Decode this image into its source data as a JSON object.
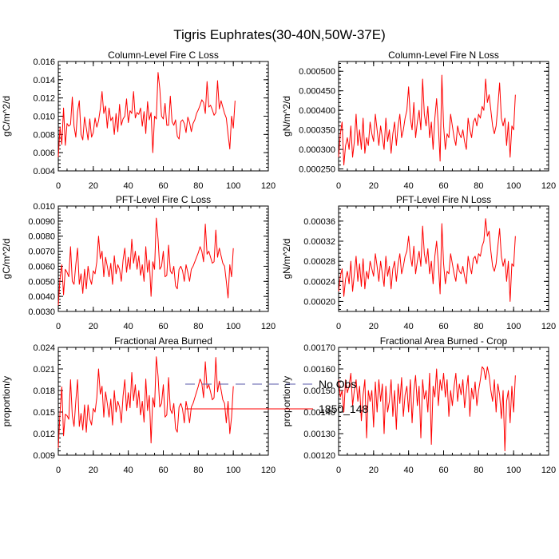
{
  "title": "Tigris Euphrates(30-40N,50W-37E)",
  "series_color": "#ff0000",
  "obs_color": "#5a5aa8",
  "legend": {
    "items": [
      {
        "label": "No Obs",
        "style": "dashed"
      },
      {
        "label": "1850_148",
        "style": "solid"
      }
    ]
  },
  "chart_data": [
    {
      "type": "line",
      "title": "Column-Level Fire C Loss",
      "ylabel": "gC/m^2/d",
      "xlim": [
        0,
        120
      ],
      "ylim": [
        0.004,
        0.016
      ],
      "xticks": [
        0,
        20,
        40,
        60,
        80,
        100,
        120
      ],
      "xtick_labels": [
        "0",
        "20",
        "40",
        "60",
        "80",
        "100",
        "120"
      ],
      "yticks": [
        0.004,
        0.006,
        0.008,
        0.01,
        0.012,
        0.014,
        0.016
      ],
      "ytick_labels": [
        "0.004",
        "0.006",
        "0.008",
        "0.010",
        "0.012",
        "0.014",
        "0.016"
      ],
      "series": [
        {
          "name": "1850_148",
          "values": [
            0.0055,
            0.0088,
            0.0069,
            0.0109,
            0.0068,
            0.0092,
            0.0089,
            0.0091,
            0.0121,
            0.0089,
            0.0077,
            0.0105,
            0.0117,
            0.008,
            0.0074,
            0.0099,
            0.0087,
            0.0074,
            0.0097,
            0.0077,
            0.0082,
            0.0098,
            0.0088,
            0.0095,
            0.0108,
            0.0127,
            0.0103,
            0.0111,
            0.0087,
            0.0109,
            0.0095,
            0.0099,
            0.008,
            0.0103,
            0.0083,
            0.0113,
            0.009,
            0.0097,
            0.01,
            0.0119,
            0.0093,
            0.0106,
            0.0103,
            0.0127,
            0.0098,
            0.0104,
            0.0102,
            0.0109,
            0.0089,
            0.0105,
            0.0081,
            0.0116,
            0.0096,
            0.0104,
            0.006,
            0.01,
            0.0097,
            0.0148,
            0.013,
            0.01,
            0.0097,
            0.0114,
            0.009,
            0.009,
            0.0122,
            0.0094,
            0.009,
            0.0096,
            0.0078,
            0.0075,
            0.0094,
            0.0096,
            0.0092,
            0.0082,
            0.0099,
            0.0093,
            0.0083,
            0.0092,
            0.0096,
            0.0103,
            0.0107,
            0.0112,
            0.0118,
            0.0115,
            0.0103,
            0.0138,
            0.011,
            0.0112,
            0.0107,
            0.0101,
            0.0104,
            0.0139,
            0.0108,
            0.0117,
            0.011,
            0.0103,
            0.0098,
            0.008,
            0.0064,
            0.01,
            0.0087,
            0.0117
          ]
        }
      ]
    },
    {
      "type": "line",
      "title": "Column-Level Fire N Loss",
      "ylabel": "gN/m^2/d",
      "xlim": [
        0,
        120
      ],
      "ylim": [
        0.000245,
        0.000525
      ],
      "xticks": [
        0,
        20,
        40,
        60,
        80,
        100,
        120
      ],
      "xtick_labels": [
        "0",
        "20",
        "40",
        "60",
        "80",
        "100",
        "120"
      ],
      "yticks": [
        0.00025,
        0.0003,
        0.00035,
        0.0004,
        0.00045,
        0.0005
      ],
      "ytick_labels": [
        "0.000250",
        "0.000300",
        "0.000350",
        "0.000400",
        "0.000450",
        "0.000500"
      ],
      "series": [
        {
          "name": "1850_148",
          "values": [
            0.00028,
            0.00034,
            0.00037,
            0.00026,
            0.00031,
            0.00033,
            0.0003,
            0.00036,
            0.00028,
            0.00032,
            0.00039,
            0.00031,
            0.00035,
            0.0003,
            0.00038,
            0.00029,
            0.00033,
            0.00031,
            0.00037,
            0.00034,
            0.00032,
            0.00039,
            0.00035,
            0.00031,
            0.00036,
            0.00033,
            0.0003,
            0.00038,
            0.00032,
            0.00035,
            0.00029,
            0.00034,
            0.00037,
            0.00031,
            0.00036,
            0.00039,
            0.00033,
            0.00035,
            0.00038,
            0.0004,
            0.00046,
            0.00038,
            0.00035,
            0.00042,
            0.00033,
            0.00037,
            0.0004,
            0.00035,
            0.00048,
            0.00039,
            0.00036,
            0.00041,
            0.00033,
            0.00037,
            0.0003,
            0.00038,
            0.00043,
            0.00036,
            0.00027,
            0.00049,
            0.00036,
            0.0003,
            0.00034,
            0.00033,
            0.00039,
            0.00036,
            0.00033,
            0.00031,
            0.00036,
            0.00034,
            0.00033,
            0.00035,
            0.00032,
            0.0003,
            0.00038,
            0.00035,
            0.00033,
            0.00037,
            0.00038,
            0.00036,
            0.00039,
            0.00038,
            0.00041,
            0.0004,
            0.00048,
            0.00042,
            0.00044,
            0.0004,
            0.00036,
            0.00034,
            0.00036,
            0.00041,
            0.00047,
            0.00038,
            0.00036,
            0.00038,
            0.00031,
            0.00037,
            0.00028,
            0.00036,
            0.00035,
            0.00044
          ]
        }
      ]
    },
    {
      "type": "line",
      "title": "PFT-Level Fire C Loss",
      "ylabel": "gC/m^2/d",
      "xlim": [
        0,
        120
      ],
      "ylim": [
        0.003,
        0.01
      ],
      "xticks": [
        0,
        20,
        40,
        60,
        80,
        100,
        120
      ],
      "xtick_labels": [
        "0",
        "20",
        "40",
        "60",
        "80",
        "100",
        "120"
      ],
      "yticks": [
        0.003,
        0.004,
        0.005,
        0.006,
        0.007,
        0.008,
        0.009,
        0.01
      ],
      "ytick_labels": [
        "0.0030",
        "0.0040",
        "0.0050",
        "0.0060",
        "0.0070",
        "0.0080",
        "0.0090",
        "0.010"
      ],
      "series": [
        {
          "name": "1850_148",
          "values": [
            0.0034,
            0.0052,
            0.0061,
            0.0041,
            0.0058,
            0.0056,
            0.0053,
            0.0073,
            0.005,
            0.0048,
            0.0061,
            0.0072,
            0.0048,
            0.0055,
            0.0042,
            0.0058,
            0.0045,
            0.006,
            0.0052,
            0.0048,
            0.0057,
            0.0055,
            0.0063,
            0.008,
            0.0065,
            0.007,
            0.0053,
            0.0066,
            0.006,
            0.0053,
            0.0062,
            0.0048,
            0.0067,
            0.0055,
            0.0061,
            0.0058,
            0.005,
            0.0064,
            0.0072,
            0.0056,
            0.0066,
            0.0058,
            0.0078,
            0.0062,
            0.007,
            0.0058,
            0.0067,
            0.0054,
            0.0061,
            0.005,
            0.0073,
            0.0056,
            0.0064,
            0.004,
            0.0063,
            0.0058,
            0.0092,
            0.0078,
            0.0058,
            0.006,
            0.007,
            0.0053,
            0.0054,
            0.0074,
            0.0057,
            0.0055,
            0.006,
            0.0047,
            0.0045,
            0.0058,
            0.006,
            0.0057,
            0.005,
            0.0061,
            0.0056,
            0.005,
            0.0058,
            0.006,
            0.0063,
            0.0066,
            0.0069,
            0.0073,
            0.007,
            0.0063,
            0.0088,
            0.0068,
            0.007,
            0.0066,
            0.0062,
            0.0063,
            0.0084,
            0.0066,
            0.0072,
            0.0067,
            0.0062,
            0.006,
            0.005,
            0.0039,
            0.0061,
            0.0053,
            0.0072
          ]
        }
      ]
    },
    {
      "type": "line",
      "title": "PFT-Level Fire N Loss",
      "ylabel": "gN/m^2/d",
      "xlim": [
        0,
        120
      ],
      "ylim": [
        0.00018,
        0.00039
      ],
      "xticks": [
        0,
        20,
        40,
        60,
        80,
        100,
        120
      ],
      "xtick_labels": [
        "0",
        "20",
        "40",
        "60",
        "80",
        "100",
        "120"
      ],
      "yticks": [
        0.0002,
        0.00024,
        0.00028,
        0.00032,
        0.00036
      ],
      "ytick_labels": [
        "0.00020",
        "0.00024",
        "0.00028",
        "0.00032",
        "0.00036"
      ],
      "series": [
        {
          "name": "1850_148",
          "values": [
            0.00022,
            0.00025,
            0.000265,
            0.00021,
            0.000245,
            0.00026,
            0.000235,
            0.00028,
            0.00022,
            0.000255,
            0.00029,
            0.00024,
            0.000275,
            0.00023,
            0.000285,
            0.000225,
            0.00026,
            0.000245,
            0.00028,
            0.000265,
            0.00025,
            0.000295,
            0.00027,
            0.00024,
            0.00028,
            0.000255,
            0.00023,
            0.00029,
            0.00025,
            0.00027,
            0.000225,
            0.000265,
            0.00028,
            0.00024,
            0.000275,
            0.000295,
            0.000255,
            0.00027,
            0.00029,
            0.0003,
            0.00033,
            0.00029,
            0.00027,
            0.00031,
            0.000255,
            0.00028,
            0.0003,
            0.00027,
            0.00035,
            0.000295,
            0.000275,
            0.000305,
            0.000255,
            0.00028,
            0.000235,
            0.00029,
            0.00032,
            0.000275,
            0.000215,
            0.000355,
            0.000275,
            0.000235,
            0.00026,
            0.000255,
            0.000295,
            0.000275,
            0.000255,
            0.00024,
            0.000275,
            0.00026,
            0.000255,
            0.00027,
            0.00025,
            0.000235,
            0.00029,
            0.00027,
            0.000255,
            0.000285,
            0.00029,
            0.000275,
            0.000295,
            0.00029,
            0.00031,
            0.00032,
            0.000365,
            0.00033,
            0.00034,
            0.0003,
            0.00027,
            0.00026,
            0.000275,
            0.00031,
            0.000345,
            0.00029,
            0.00027,
            0.000285,
            0.00024,
            0.00028,
            0.0002,
            0.000275,
            0.00027,
            0.00033
          ]
        }
      ]
    },
    {
      "type": "line",
      "title": "Fractional Area Burned",
      "ylabel": "proportion/y",
      "xlim": [
        0,
        120
      ],
      "ylim": [
        0.009,
        0.024
      ],
      "xticks": [
        0,
        20,
        40,
        60,
        80,
        100,
        120
      ],
      "xtick_labels": [
        "0",
        "20",
        "40",
        "60",
        "80",
        "100",
        "120"
      ],
      "yticks": [
        0.009,
        0.012,
        0.015,
        0.018,
        0.021,
        0.024
      ],
      "ytick_labels": [
        "0.009",
        "0.012",
        "0.015",
        "0.018",
        "0.021",
        "0.024"
      ],
      "series": [
        {
          "name": "1850_148",
          "values": [
            0.01,
            0.015,
            0.0185,
            0.0117,
            0.0147,
            0.0145,
            0.014,
            0.0195,
            0.0145,
            0.013,
            0.0165,
            0.0195,
            0.013,
            0.0148,
            0.0125,
            0.016,
            0.0122,
            0.016,
            0.014,
            0.0132,
            0.0155,
            0.015,
            0.017,
            0.021,
            0.0175,
            0.0186,
            0.0143,
            0.0178,
            0.0162,
            0.0143,
            0.0168,
            0.0132,
            0.018,
            0.015,
            0.0165,
            0.0157,
            0.0135,
            0.0172,
            0.0195,
            0.0152,
            0.0177,
            0.0156,
            0.0205,
            0.0166,
            0.0188,
            0.0156,
            0.018,
            0.0146,
            0.0165,
            0.0136,
            0.0196,
            0.0152,
            0.0173,
            0.0107,
            0.017,
            0.0157,
            0.0227,
            0.02,
            0.0157,
            0.0162,
            0.0188,
            0.0143,
            0.0146,
            0.0198,
            0.0154,
            0.0148,
            0.0162,
            0.0127,
            0.0122,
            0.0157,
            0.0162,
            0.0154,
            0.0135,
            0.0165,
            0.0152,
            0.0135,
            0.0157,
            0.0162,
            0.017,
            0.0178,
            0.0186,
            0.0196,
            0.019,
            0.017,
            0.022,
            0.0183,
            0.0188,
            0.0178,
            0.0167,
            0.017,
            0.0226,
            0.0178,
            0.0193,
            0.0181,
            0.0167,
            0.0162,
            0.0135,
            0.0165,
            0.012,
            0.0143,
            0.0186
          ]
        }
      ]
    },
    {
      "type": "line",
      "title": "Fractional Area Burned - Crop",
      "ylabel": "proportion/y",
      "xlim": [
        0,
        120
      ],
      "ylim": [
        0.0012,
        0.0017
      ],
      "xticks": [
        0,
        20,
        40,
        60,
        80,
        100,
        120
      ],
      "xtick_labels": [
        "0",
        "20",
        "40",
        "60",
        "80",
        "100",
        "120"
      ],
      "yticks": [
        0.0012,
        0.0013,
        0.0014,
        0.0015,
        0.0016,
        0.0017
      ],
      "ytick_labels": [
        "0.00120",
        "0.00130",
        "0.00140",
        "0.00150",
        "0.00160",
        "0.00170"
      ],
      "series": [
        {
          "name": "1850_148",
          "values": [
            0.00155,
            0.00147,
            0.0015,
            0.0014,
            0.00155,
            0.00149,
            0.00152,
            0.00158,
            0.00143,
            0.0015,
            0.00155,
            0.00145,
            0.00152,
            0.00136,
            0.00148,
            0.00155,
            0.00128,
            0.0015,
            0.00145,
            0.0015,
            0.00133,
            0.00154,
            0.0014,
            0.00155,
            0.00145,
            0.00153,
            0.0013,
            0.00152,
            0.0014,
            0.00145,
            0.00155,
            0.00138,
            0.0015,
            0.00132,
            0.00153,
            0.00144,
            0.00156,
            0.00138,
            0.00148,
            0.00152,
            0.0014,
            0.00155,
            0.00135,
            0.0015,
            0.00157,
            0.00143,
            0.00152,
            0.00128,
            0.00155,
            0.00146,
            0.0015,
            0.0014,
            0.00158,
            0.00125,
            0.00152,
            0.00147,
            0.0016,
            0.00143,
            0.00155,
            0.0015,
            0.00158,
            0.00147,
            0.00155,
            0.00138,
            0.0015,
            0.00143,
            0.00152,
            0.00158,
            0.00145,
            0.00153,
            0.00148,
            0.00155,
            0.00142,
            0.0015,
            0.00157,
            0.00138,
            0.00151,
            0.00146,
            0.00154,
            0.00143,
            0.0015,
            0.00155,
            0.00161,
            0.0016,
            0.00155,
            0.00161,
            0.00157,
            0.0015,
            0.00145,
            0.00155,
            0.0014,
            0.00153,
            0.00148,
            0.00137,
            0.0015,
            0.00122,
            0.00145,
            0.0015,
            0.00135,
            0.00152,
            0.0014,
            0.00157
          ]
        }
      ]
    }
  ]
}
